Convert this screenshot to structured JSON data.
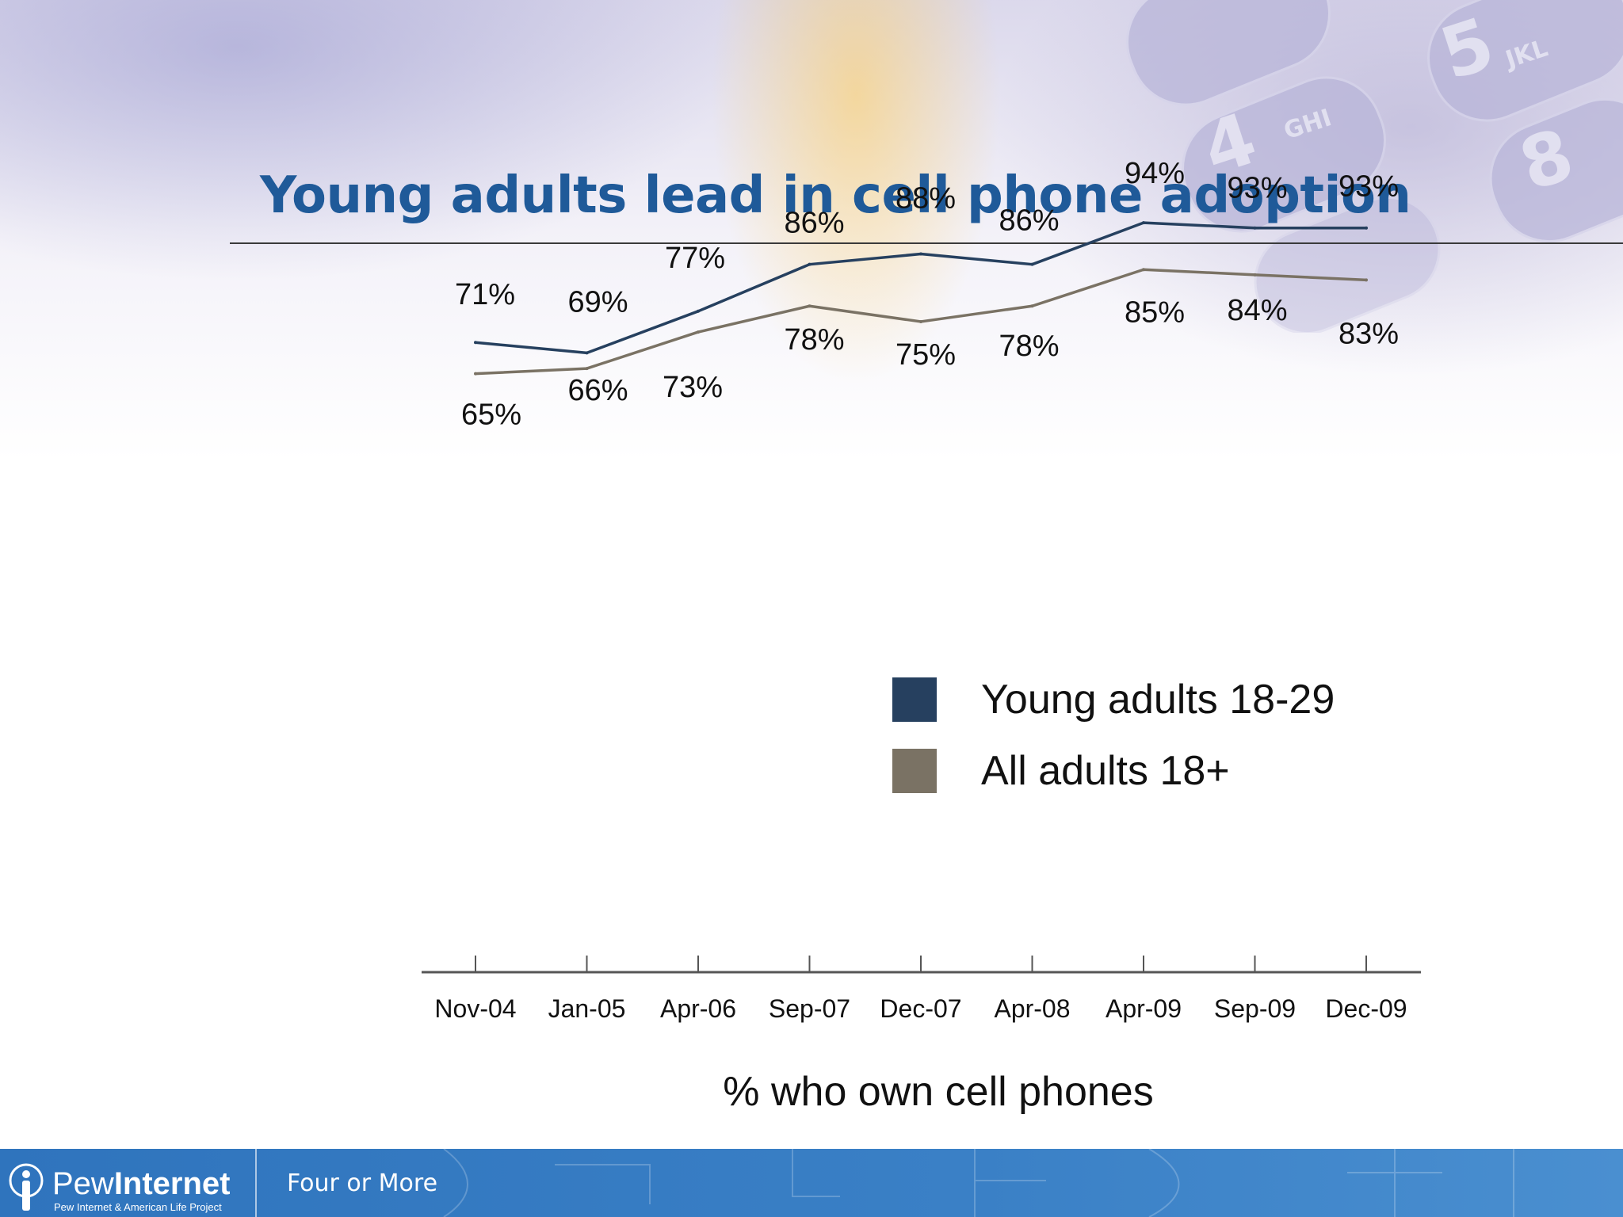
{
  "slide": {
    "title": "Young adults lead in cell phone adoption"
  },
  "footer": {
    "brand_prefix": "Pew",
    "brand_bold": "Internet",
    "brand_subtitle": "Pew Internet & American Life Project",
    "section_text": "Four or More"
  },
  "colors": {
    "title": "#1f5a99",
    "series_young": "#26405f",
    "series_all": "#7a7264",
    "footer": "#2f74bd"
  },
  "chart_data": {
    "type": "line",
    "title": "",
    "xlabel": "% who own cell phones",
    "ylabel": "",
    "categories": [
      "Nov-04",
      "Jan-05",
      "Apr-06",
      "Sep-07",
      "Dec-07",
      "Apr-08",
      "Apr-09",
      "Sep-09",
      "Dec-09"
    ],
    "series": [
      {
        "name": "Young adults 18-29",
        "values": [
          71,
          69,
          77,
          86,
          88,
          86,
          94,
          93,
          93
        ],
        "labels": [
          "71%",
          "69%",
          "77%",
          "86%",
          "88%",
          "86%",
          "94%",
          "93%",
          "93%"
        ],
        "color": "#26405f"
      },
      {
        "name": "All adults 18+",
        "values": [
          65,
          66,
          73,
          78,
          75,
          78,
          85,
          84,
          83
        ],
        "labels": [
          "65%",
          "66%",
          "73%",
          "78%",
          "75%",
          "78%",
          "85%",
          "84%",
          "83%"
        ],
        "color": "#7a7264"
      }
    ],
    "grid": false,
    "y_axis_visible": false,
    "legend_position": "right"
  }
}
